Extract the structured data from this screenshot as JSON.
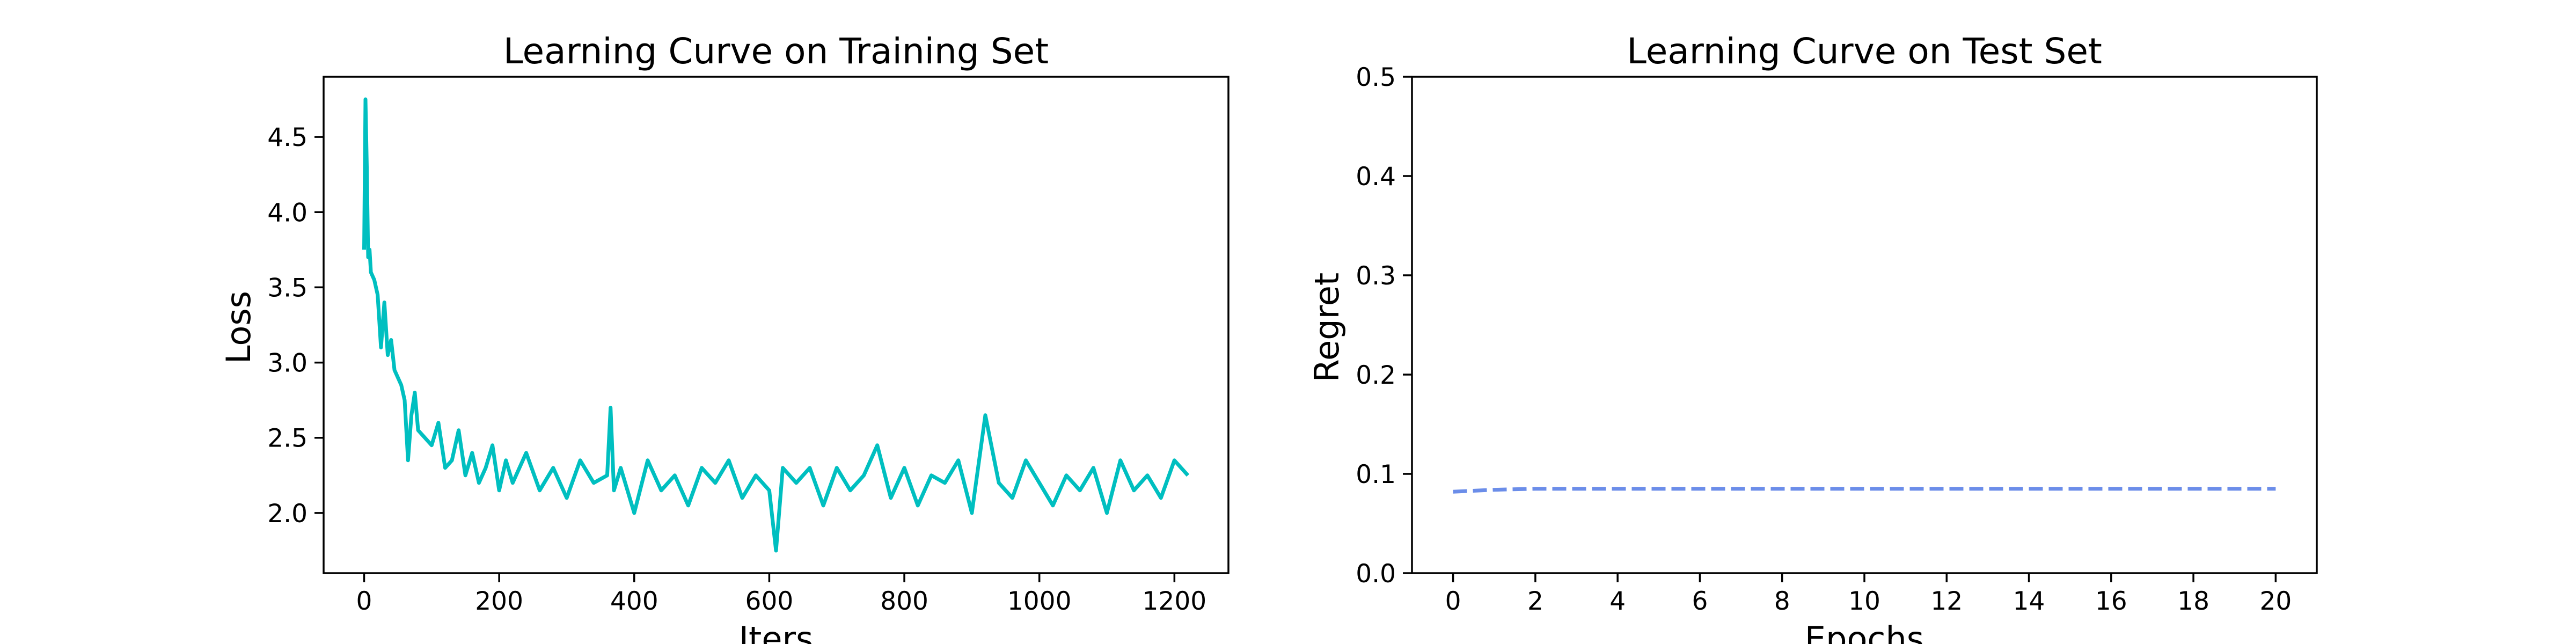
{
  "chart_data": [
    {
      "type": "line",
      "title": "Learning Curve on Training Set",
      "xlabel": "Iters",
      "ylabel": "Loss",
      "xlim": [
        -60,
        1280
      ],
      "ylim": [
        1.6,
        4.9
      ],
      "xticks": [
        0,
        200,
        400,
        600,
        800,
        1000,
        1200
      ],
      "xtick_labels": [
        "0",
        "200",
        "400",
        "600",
        "800",
        "1000",
        "1200"
      ],
      "yticks": [
        2.0,
        2.5,
        3.0,
        3.5,
        4.0,
        4.5
      ],
      "ytick_labels": [
        "2.0",
        "2.5",
        "3.0",
        "3.5",
        "4.0",
        "4.5"
      ],
      "grid": false,
      "series": [
        {
          "color": "#00bfc0",
          "line_style": "solid",
          "x": [
            0,
            2,
            4,
            6,
            8,
            10,
            15,
            20,
            25,
            30,
            35,
            40,
            45,
            50,
            55,
            60,
            65,
            70,
            75,
            80,
            90,
            100,
            110,
            120,
            130,
            140,
            150,
            160,
            170,
            180,
            190,
            200,
            210,
            220,
            240,
            260,
            280,
            300,
            320,
            340,
            360,
            365,
            370,
            380,
            400,
            420,
            440,
            460,
            480,
            500,
            520,
            540,
            560,
            580,
            600,
            610,
            620,
            640,
            660,
            680,
            700,
            720,
            740,
            760,
            780,
            800,
            820,
            840,
            860,
            880,
            900,
            920,
            940,
            960,
            980,
            1000,
            1020,
            1040,
            1060,
            1080,
            1100,
            1120,
            1140,
            1160,
            1180,
            1200,
            1220
          ],
          "y": [
            3.75,
            4.75,
            4.3,
            3.7,
            3.75,
            3.6,
            3.55,
            3.45,
            3.1,
            3.4,
            3.05,
            3.15,
            2.95,
            2.9,
            2.85,
            2.75,
            2.35,
            2.65,
            2.8,
            2.55,
            2.5,
            2.45,
            2.6,
            2.3,
            2.35,
            2.55,
            2.25,
            2.4,
            2.2,
            2.3,
            2.45,
            2.15,
            2.35,
            2.2,
            2.4,
            2.15,
            2.3,
            2.1,
            2.35,
            2.2,
            2.25,
            2.7,
            2.15,
            2.3,
            2.0,
            2.35,
            2.15,
            2.25,
            2.05,
            2.3,
            2.2,
            2.35,
            2.1,
            2.25,
            2.15,
            1.75,
            2.3,
            2.2,
            2.3,
            2.05,
            2.3,
            2.15,
            2.25,
            2.45,
            2.1,
            2.3,
            2.05,
            2.25,
            2.2,
            2.35,
            2.0,
            2.65,
            2.2,
            2.1,
            2.35,
            2.2,
            2.05,
            2.25,
            2.15,
            2.3,
            2.0,
            2.35,
            2.15,
            2.25,
            2.1,
            2.35,
            2.25
          ]
        }
      ]
    },
    {
      "type": "line",
      "title": "Learning Curve on Test Set",
      "xlabel": "Epochs",
      "ylabel": "Regret",
      "xlim": [
        -1,
        21
      ],
      "ylim": [
        0.0,
        0.5
      ],
      "xticks": [
        0,
        2,
        4,
        6,
        8,
        10,
        12,
        14,
        16,
        18,
        20
      ],
      "xtick_labels": [
        "0",
        "2",
        "4",
        "6",
        "8",
        "10",
        "12",
        "14",
        "16",
        "18",
        "20"
      ],
      "yticks": [
        0.0,
        0.1,
        0.2,
        0.3,
        0.4,
        0.5
      ],
      "ytick_labels": [
        "0.0",
        "0.1",
        "0.2",
        "0.3",
        "0.4",
        "0.5"
      ],
      "grid": false,
      "series": [
        {
          "color": "#6b8de9",
          "line_style": "dashed",
          "x": [
            0,
            1,
            2,
            3,
            4,
            5,
            6,
            7,
            8,
            9,
            10,
            11,
            12,
            13,
            14,
            15,
            16,
            17,
            18,
            19,
            20
          ],
          "y": [
            0.082,
            0.084,
            0.085,
            0.085,
            0.085,
            0.085,
            0.085,
            0.085,
            0.085,
            0.085,
            0.085,
            0.085,
            0.085,
            0.085,
            0.085,
            0.085,
            0.085,
            0.085,
            0.085,
            0.085,
            0.085
          ]
        }
      ]
    }
  ]
}
